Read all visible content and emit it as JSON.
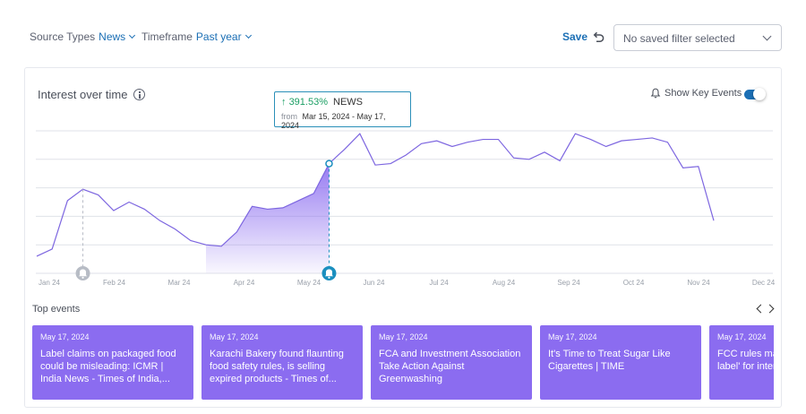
{
  "filters": {
    "source_types_label": "Source Types",
    "source_types_value": "News",
    "timeframe_label": "Timeframe",
    "timeframe_value": "Past year",
    "save_label": "Save",
    "saved_filter_placeholder": "No saved filter selected"
  },
  "chart": {
    "title": "Interest over time",
    "show_key_events_label": "Show Key Events",
    "show_key_events_enabled": true,
    "tooltip": {
      "change": "391.53%",
      "source": "NEWS",
      "from_label": "from",
      "range": "Mar 15, 2024 - May 17, 2024"
    }
  },
  "chart_data": {
    "type": "area",
    "x_ticks": [
      "Jan 24",
      "Feb 24",
      "Mar 24",
      "Apr 24",
      "May 24",
      "Jun 24",
      "Jul 24",
      "Aug 24",
      "Sep 24",
      "Oct 24",
      "Nov 24",
      "Dec 24"
    ],
    "ylim": [
      0,
      100
    ],
    "grid": true,
    "highlight_range": [
      "Mar 15, 2024",
      "May 17, 2024"
    ],
    "highlight_color": "#8b6cf0",
    "line_color": "#7d66e0",
    "values": [
      12,
      17,
      51,
      59,
      55,
      44,
      50,
      45,
      37,
      31,
      23,
      20,
      19,
      29,
      47,
      45,
      46,
      51,
      56,
      77,
      87,
      98,
      76,
      77,
      83,
      91,
      93,
      89,
      92,
      94,
      94,
      81,
      80,
      85,
      79,
      98,
      94,
      89,
      93,
      94,
      95,
      92,
      74,
      75,
      37
    ],
    "key_events": [
      {
        "date": "Feb 2024",
        "color": "#b7bcc5"
      },
      {
        "date": "May 17, 2024",
        "color": "#1b8fbf"
      }
    ]
  },
  "top_events": {
    "title": "Top events",
    "items": [
      {
        "date": "May 17, 2024",
        "title": "Label claims on packaged food could be misleading: ICMR | India News - Times of India,..."
      },
      {
        "date": "May 17, 2024",
        "title": "Karachi Bakery found flaunting food safety rules, is selling expired products - Times of..."
      },
      {
        "date": "May 17, 2024",
        "title": "FCA and Investment Association Take Action Against Greenwashing"
      },
      {
        "date": "May 17, 2024",
        "title": "It's Time to Treat Sugar Like Cigarettes | TIME"
      },
      {
        "date": "May 17, 2024",
        "title": "FCC rules mandate 'nutrition label' for internet providers"
      }
    ]
  },
  "colors": {
    "accent": "#1b6fb5",
    "event_card": "#8b6cf0",
    "positive": "#1a9e63"
  }
}
